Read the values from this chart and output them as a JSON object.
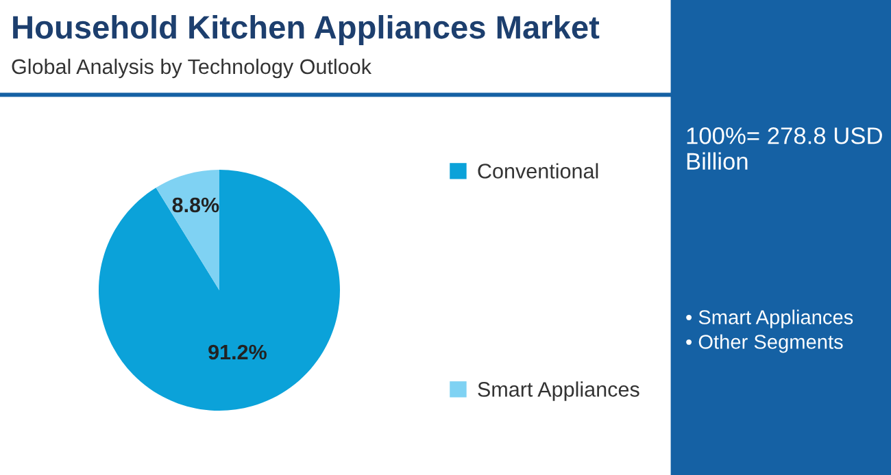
{
  "chart_data": {
    "type": "pie",
    "title": "Household Kitchen Appliances Market",
    "subtitle": "Global Analysis by Technology Outlook",
    "categories": [
      "Conventional",
      "Smart Appliances"
    ],
    "values": [
      91.2,
      8.8
    ],
    "colors": [
      "#0ba2d9",
      "#7fd2f3"
    ],
    "value_labels": [
      "91.2%",
      "8.8%"
    ],
    "legend": "right",
    "annotations": [
      "100%= 278.8 USD Billion",
      "• Smart Appliances",
      "• Other Segments"
    ]
  }
}
